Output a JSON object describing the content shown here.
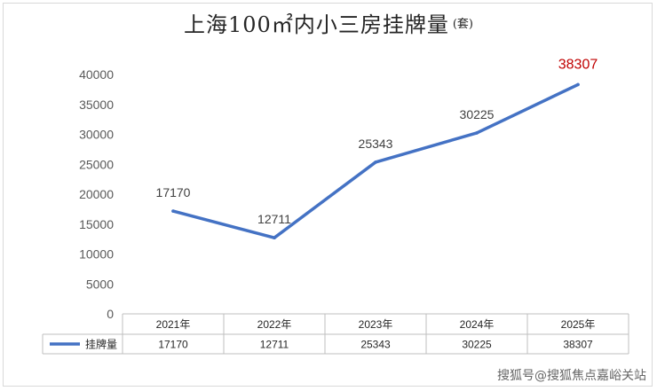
{
  "title": {
    "main": "上海100㎡内小三房挂牌量",
    "sub": "(套)"
  },
  "watermark": "搜狐号@搜狐焦点嘉峪关站",
  "chart_data": {
    "type": "line",
    "title": "上海100㎡内小三房挂牌量(套)",
    "xlabel": "",
    "ylabel": "",
    "categories": [
      "2021年",
      "2022年",
      "2023年",
      "2024年",
      "2025年"
    ],
    "y_ticks": [
      0,
      5000,
      10000,
      15000,
      20000,
      25000,
      30000,
      35000,
      40000
    ],
    "ylim": [
      0,
      40000
    ],
    "grid": false,
    "legend": "data-table-bottom",
    "series": [
      {
        "name": "挂牌量",
        "color": "#4472c4",
        "values": [
          17170,
          12711,
          25343,
          30225,
          38307
        ],
        "labels": [
          "17170",
          "12711",
          "25343",
          "30225",
          "38307"
        ],
        "highlight_color": "#c00000"
      }
    ]
  }
}
